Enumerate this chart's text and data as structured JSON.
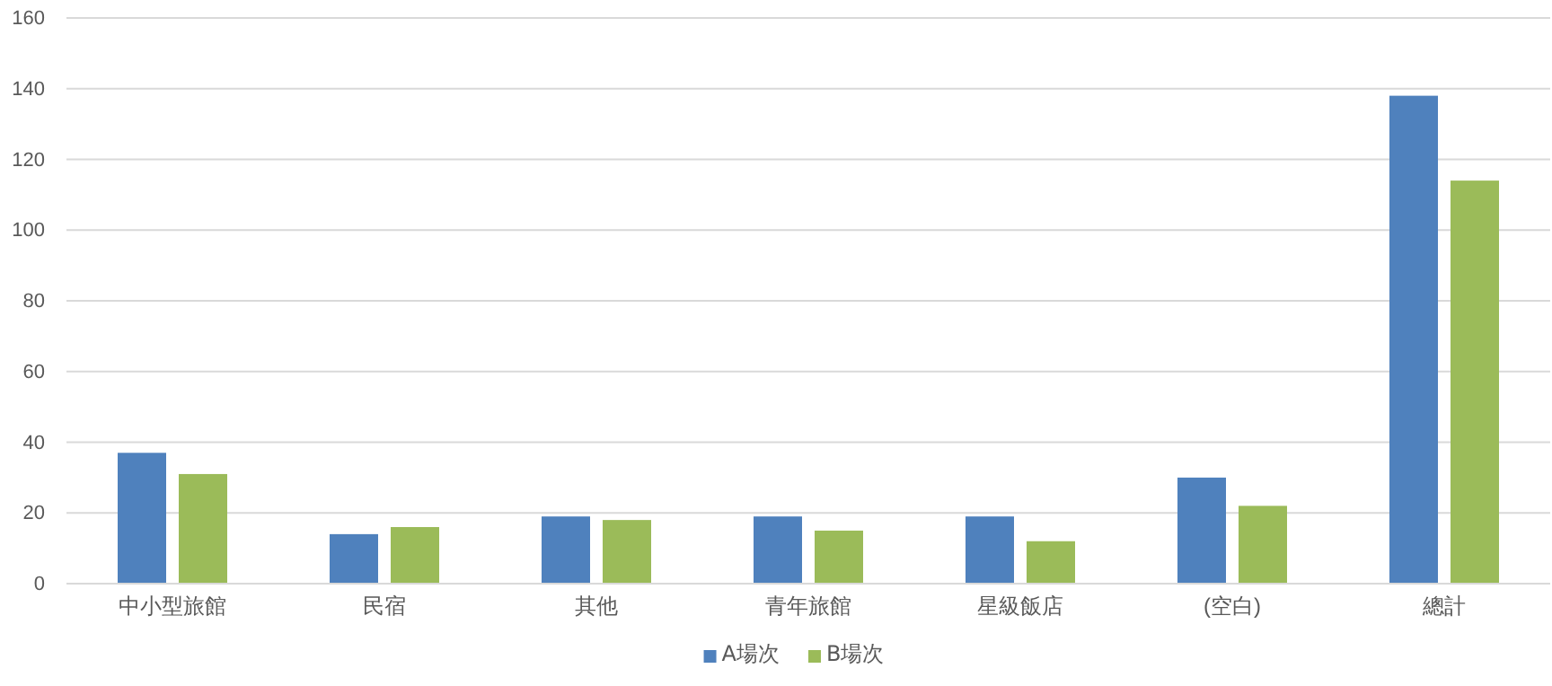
{
  "chart_data": {
    "type": "bar",
    "categories": [
      "中小型旅館",
      "民宿",
      "其他",
      "青年旅館",
      "星級飯店",
      "(空白)",
      "總計"
    ],
    "series": [
      {
        "name": "A場次",
        "color": "#4f81bd",
        "values": [
          37,
          14,
          19,
          19,
          19,
          30,
          138
        ]
      },
      {
        "name": "B場次",
        "color": "#9bbb59",
        "values": [
          31,
          16,
          18,
          15,
          12,
          22,
          114
        ]
      }
    ],
    "ylim": [
      0,
      160
    ],
    "yticks": [
      0,
      20,
      40,
      60,
      80,
      100,
      120,
      140,
      160
    ],
    "grid": "y",
    "legend": "bottom"
  }
}
